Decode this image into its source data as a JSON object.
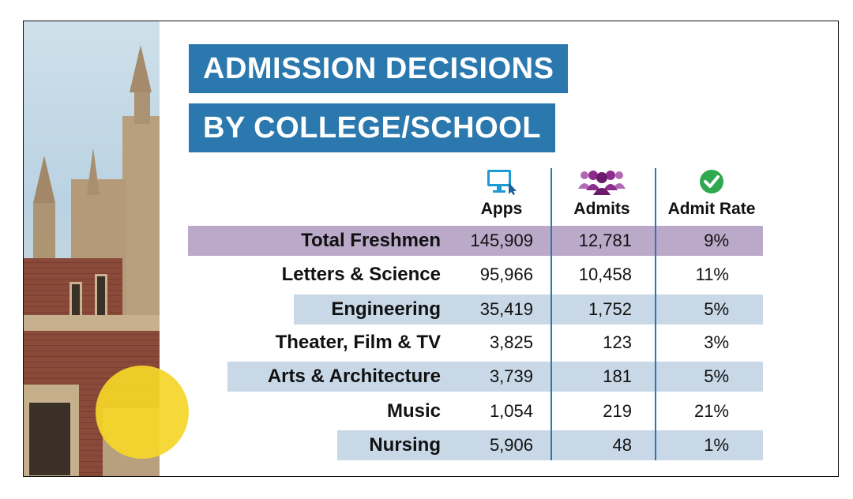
{
  "title": {
    "line1": "ADMISSION DECISIONS",
    "line2": "BY COLLEGE/SCHOOL"
  },
  "columns": {
    "apps": {
      "label": "Apps",
      "icon": "computer-monitor-icon"
    },
    "admits": {
      "label": "Admits",
      "icon": "people-group-icon"
    },
    "rate": {
      "label": "Admit Rate",
      "icon": "check-circle-icon"
    }
  },
  "colors": {
    "title_bg": "#2a78ad",
    "highlight_total": "#bba9c9",
    "highlight_row": "#c8d8e7",
    "divider": "#2a78ad",
    "accent_yellow": "#f5d628",
    "monitor_icon": "#1b9bd1",
    "people_icon": "#8e2c8e",
    "check_icon": "#2fa84f"
  },
  "rows": [
    {
      "name": "Total Freshmen",
      "apps": "145,909",
      "admits": "12,781",
      "rate": "9%"
    },
    {
      "name": "Letters & Science",
      "apps": "95,966",
      "admits": "10,458",
      "rate": "11%"
    },
    {
      "name": "Engineering",
      "apps": "35,419",
      "admits": "1,752",
      "rate": "5%"
    },
    {
      "name": "Theater, Film & TV",
      "apps": "3,825",
      "admits": "123",
      "rate": "3%"
    },
    {
      "name": "Arts & Architecture",
      "apps": "3,739",
      "admits": "181",
      "rate": "5%"
    },
    {
      "name": "Music",
      "apps": "1,054",
      "admits": "219",
      "rate": "21%"
    },
    {
      "name": "Nursing",
      "apps": "5,906",
      "admits": "48",
      "rate": "1%"
    }
  ]
}
